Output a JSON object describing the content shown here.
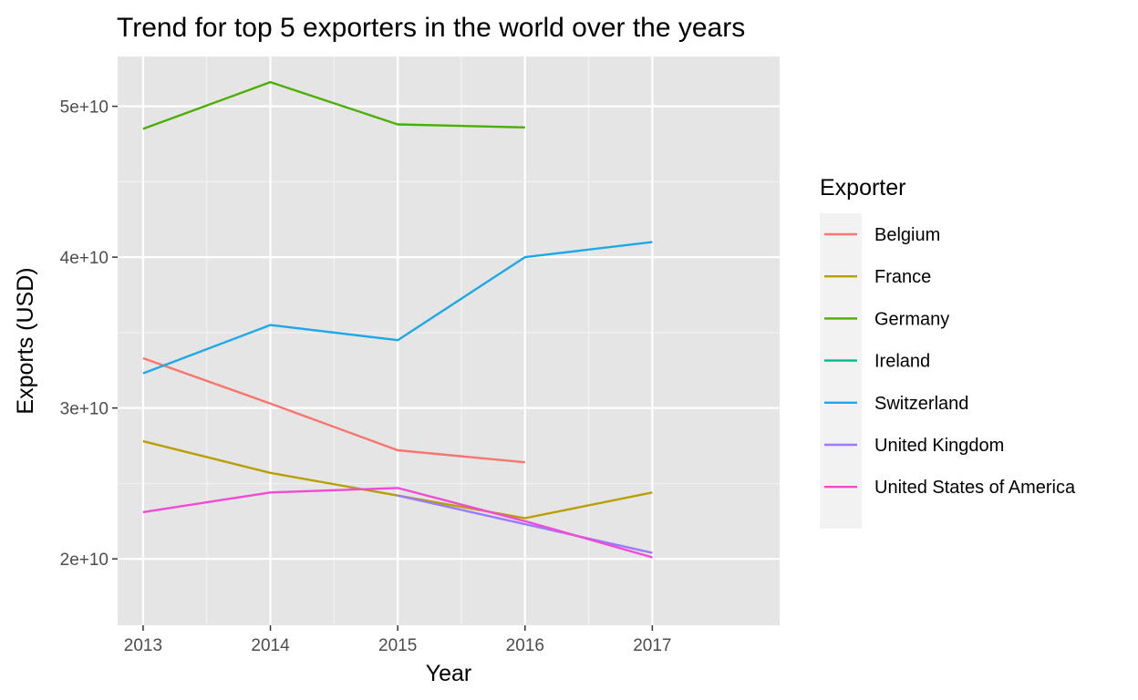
{
  "chart_data": {
    "type": "line",
    "title": "Trend for top 5 exporters in the world over the years",
    "xlabel": "Year",
    "ylabel": "Exports (USD)",
    "x": [
      2013,
      2014,
      2015,
      2016,
      2017
    ],
    "x_tick_labels": [
      "2013",
      "2014",
      "2015",
      "2016",
      "2017"
    ],
    "y_ticks": [
      20000000000,
      30000000000,
      40000000000,
      50000000000
    ],
    "y_tick_labels": [
      "2e+10",
      "3e+10",
      "4e+10",
      "5e+10"
    ],
    "xlim": [
      2012.8,
      2018.0
    ],
    "ylim": [
      15600000000,
      53300000000
    ],
    "grid": true,
    "legend": {
      "title": "Exporter",
      "placement": "right"
    },
    "series": [
      {
        "name": "Belgium",
        "color": "#F8766D",
        "values": [
          33300000000,
          30300000000,
          27200000000,
          26400000000,
          null
        ]
      },
      {
        "name": "France",
        "color": "#B79F00",
        "values": [
          27800000000,
          25700000000,
          24200000000,
          22700000000,
          24400000000
        ]
      },
      {
        "name": "Germany",
        "color": "#4BAF00",
        "values": [
          48500000000,
          51600000000,
          48800000000,
          48600000000,
          null
        ]
      },
      {
        "name": "Ireland",
        "color": "#00BA8A",
        "values": [
          null,
          null,
          null,
          null,
          null
        ]
      },
      {
        "name": "Switzerland",
        "color": "#1EA9E6",
        "values": [
          32300000000,
          35500000000,
          34500000000,
          40000000000,
          41000000000
        ]
      },
      {
        "name": "United Kingdom",
        "color": "#9A7BFF",
        "values": [
          null,
          null,
          24200000000,
          22300000000,
          20400000000
        ]
      },
      {
        "name": "United States of America",
        "color": "#F14BD6",
        "values": [
          23100000000,
          24400000000,
          24700000000,
          22500000000,
          20100000000
        ]
      }
    ]
  }
}
